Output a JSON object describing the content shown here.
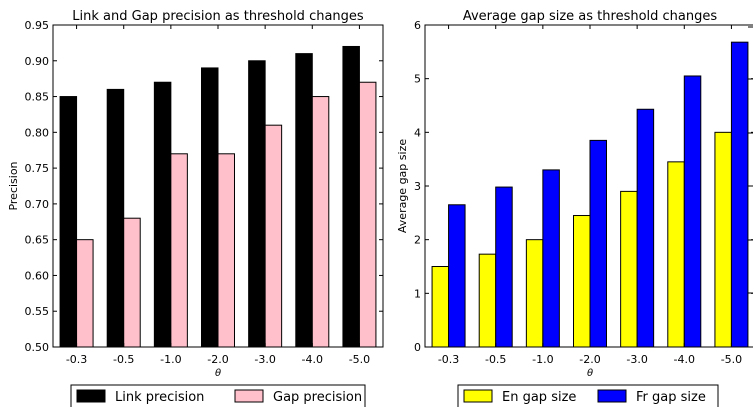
{
  "chart_data": [
    {
      "type": "bar",
      "title": "Link and Gap precision as threshold changes",
      "xlabel": "θ",
      "ylabel": "Precision",
      "categories": [
        "-0.3",
        "-0.5",
        "-1.0",
        "-2.0",
        "-3.0",
        "-4.0",
        "-5.0"
      ],
      "ylim": [
        0.5,
        0.95
      ],
      "yticks": [
        "0.50",
        "0.55",
        "0.60",
        "0.65",
        "0.70",
        "0.75",
        "0.80",
        "0.85",
        "0.90",
        "0.95"
      ],
      "grid": false,
      "legend_position": "bottom",
      "series": [
        {
          "name": "Link precision",
          "color": "#000000",
          "values": [
            0.85,
            0.86,
            0.87,
            0.89,
            0.9,
            0.91,
            0.92
          ]
        },
        {
          "name": "Gap precision",
          "color": "#ffc0cb",
          "values": [
            0.65,
            0.68,
            0.77,
            0.77,
            0.81,
            0.85,
            0.87
          ]
        }
      ]
    },
    {
      "type": "bar",
      "title": "Average gap size as threshold changes",
      "xlabel": "θ",
      "ylabel": "Average gap size",
      "categories": [
        "-0.3",
        "-0.5",
        "-1.0",
        "-2.0",
        "-3.0",
        "-4.0",
        "-5.0"
      ],
      "ylim": [
        0,
        6
      ],
      "yticks": [
        "0",
        "1",
        "2",
        "3",
        "4",
        "5",
        "6"
      ],
      "grid": false,
      "legend_position": "bottom",
      "series": [
        {
          "name": "En gap size",
          "color": "#ffff00",
          "values": [
            1.5,
            1.73,
            2.0,
            2.45,
            2.9,
            3.45,
            4.0
          ]
        },
        {
          "name": "Fr gap size",
          "color": "#0000ff",
          "values": [
            2.65,
            2.98,
            3.3,
            3.85,
            4.43,
            5.05,
            5.68
          ]
        }
      ]
    }
  ]
}
